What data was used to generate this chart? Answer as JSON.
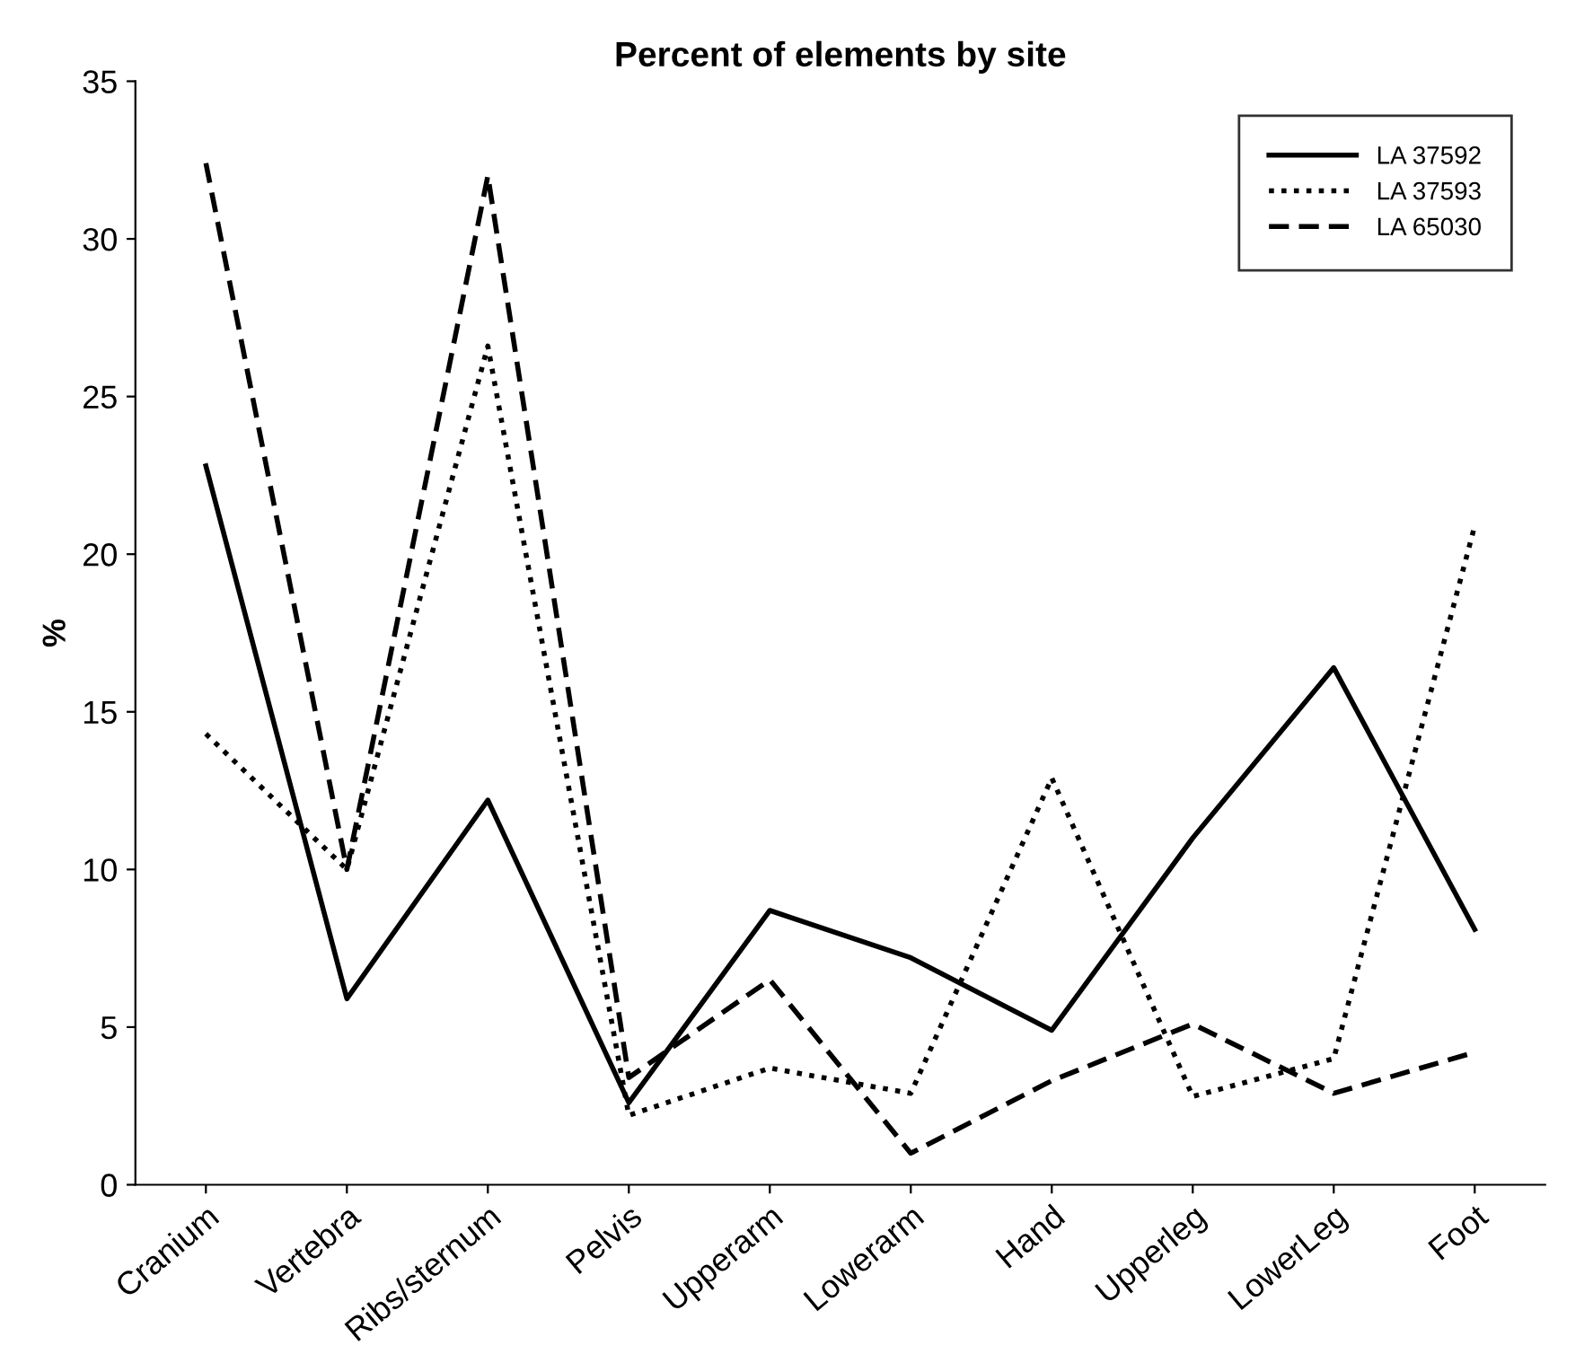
{
  "chart_data": {
    "type": "line",
    "title": "Percent of elements by site",
    "ylabel": "%",
    "categories": [
      "Cranium",
      "Vertebra",
      "Ribs/sternum",
      "Pelvis",
      "Upperarm",
      "Lowerarm",
      "Hand",
      "Upperleg",
      "LowerLeg",
      "Foot"
    ],
    "series": [
      {
        "name": "LA 37592",
        "color": "#000000",
        "line_style": "solid",
        "values": [
          22.8,
          5.9,
          12.2,
          2.6,
          8.7,
          7.2,
          4.9,
          11,
          16.4,
          8.1
        ]
      },
      {
        "name": "LA 37593",
        "color": "#000000",
        "line_style": "dotted",
        "values": [
          14.3,
          10,
          26.6,
          2.2,
          3.7,
          2.9,
          12.9,
          2.8,
          4.0,
          20.9
        ]
      },
      {
        "name": "LA 65030",
        "color": "#000000",
        "line_style": "dashed",
        "values": [
          32.4,
          10,
          32.0,
          3.4,
          6.5,
          1.0,
          3.3,
          5.1,
          2.9,
          4.2
        ]
      }
    ],
    "ylim": [
      0,
      35
    ],
    "yticks": [
      0,
      5,
      10,
      15,
      20,
      25,
      30,
      35
    ],
    "grid": false,
    "legend": "top right",
    "marker": "none"
  }
}
